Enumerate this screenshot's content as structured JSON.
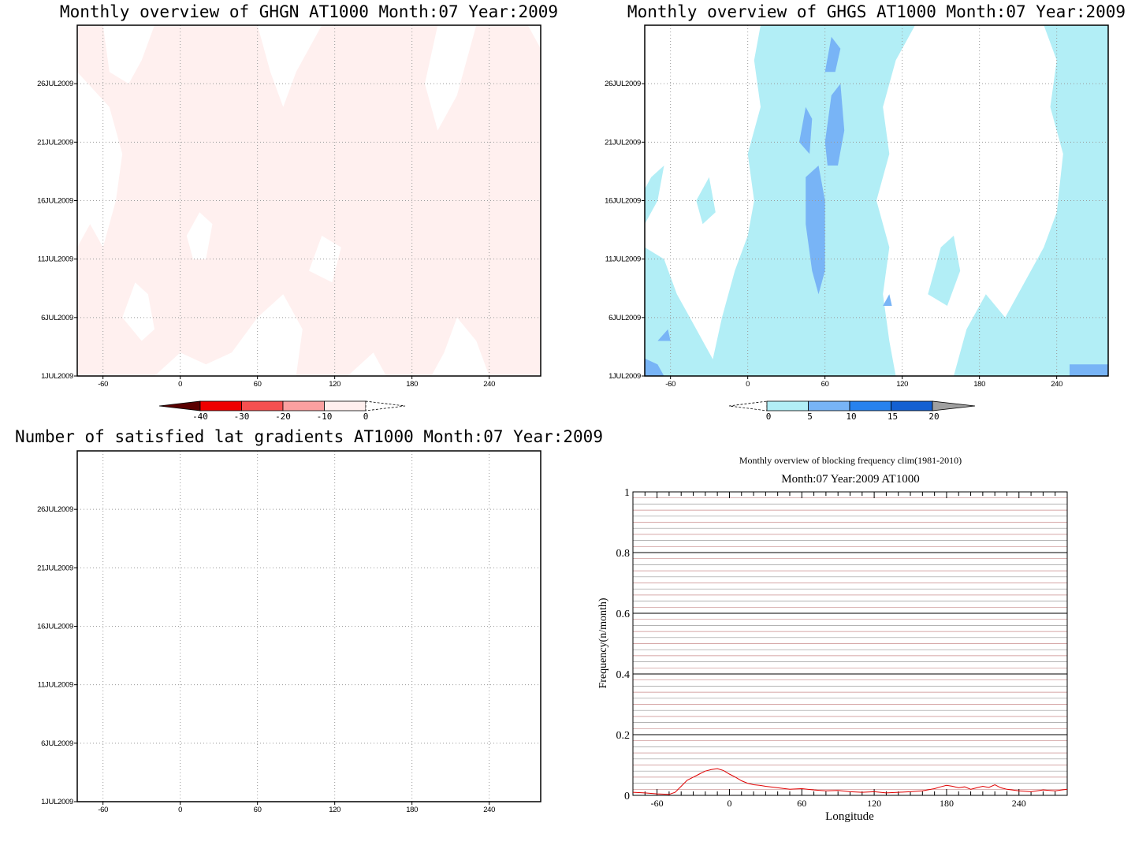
{
  "chart_data": [
    {
      "id": "ghgn",
      "type": "heatmap",
      "title": "Monthly overview of GHGN AT1000 Month:07 Year:2009",
      "x_ticks": [
        -60,
        0,
        60,
        120,
        180,
        240
      ],
      "xlim": [
        -80,
        280
      ],
      "y_ticks": [
        "1JUL2009",
        "6JUL2009",
        "11JUL2009",
        "16JUL2009",
        "21JUL2009",
        "26JUL2009"
      ],
      "y_values": [
        1,
        6,
        11,
        16,
        21,
        26
      ],
      "ylim": [
        1,
        31
      ],
      "grid": true,
      "fill_color": "#fff0ef",
      "colorbar": {
        "labels": [
          "-40",
          "-30",
          "-20",
          "-10",
          "0"
        ],
        "colors": [
          "#5a0000",
          "#ee0000",
          "#f55050",
          "#fba0a0",
          "#ffefee"
        ]
      },
      "shaded_regions_lon_day": [
        [
          [
            -80,
            1
          ],
          [
            -80,
            12
          ],
          [
            -70,
            14
          ],
          [
            -60,
            12
          ],
          [
            -50,
            16
          ],
          [
            -45,
            20
          ],
          [
            -55,
            24
          ],
          [
            -80,
            27
          ],
          [
            -80,
            31
          ],
          [
            -60,
            31
          ],
          [
            -55,
            27
          ],
          [
            -40,
            26
          ],
          [
            -30,
            28
          ],
          [
            -20,
            31
          ],
          [
            60,
            31
          ],
          [
            70,
            27
          ],
          [
            80,
            24
          ],
          [
            90,
            27
          ],
          [
            110,
            31
          ],
          [
            200,
            31
          ],
          [
            190,
            26
          ],
          [
            200,
            22
          ],
          [
            215,
            25
          ],
          [
            230,
            31
          ],
          [
            270,
            31
          ],
          [
            280,
            29
          ],
          [
            280,
            1
          ],
          [
            240,
            1
          ],
          [
            230,
            4
          ],
          [
            215,
            6
          ],
          [
            205,
            3
          ],
          [
            195,
            1
          ],
          [
            160,
            1
          ],
          [
            150,
            3
          ],
          [
            130,
            1
          ],
          [
            90,
            1
          ],
          [
            95,
            5
          ],
          [
            80,
            8
          ],
          [
            60,
            6
          ],
          [
            40,
            3
          ],
          [
            20,
            2
          ],
          [
            0,
            3
          ],
          [
            -20,
            1
          ]
        ],
        [
          [
            -45,
            6
          ],
          [
            -35,
            9
          ],
          [
            -25,
            8
          ],
          [
            -20,
            5
          ],
          [
            -30,
            4
          ]
        ],
        [
          [
            5,
            13
          ],
          [
            15,
            15
          ],
          [
            25,
            14
          ],
          [
            20,
            11
          ],
          [
            10,
            11
          ]
        ],
        [
          [
            100,
            10
          ],
          [
            110,
            13
          ],
          [
            125,
            12
          ],
          [
            118,
            9
          ]
        ]
      ]
    },
    {
      "id": "ghgs",
      "type": "heatmap",
      "title": "Monthly overview of GHGS AT1000 Month:07 Year:2009",
      "x_ticks": [
        -60,
        0,
        60,
        120,
        180,
        240
      ],
      "xlim": [
        -80,
        280
      ],
      "y_ticks": [
        "1JUL2009",
        "6JUL2009",
        "11JUL2009",
        "16JUL2009",
        "21JUL2009",
        "26JUL2009"
      ],
      "y_values": [
        1,
        6,
        11,
        16,
        21,
        26
      ],
      "ylim": [
        1,
        31
      ],
      "grid": true,
      "colorbar": {
        "labels": [
          "0",
          "5",
          "10",
          "15",
          "20"
        ],
        "colors": [
          "#b2eef6",
          "#78b4f6",
          "#2882ee",
          "#1460d2",
          "#a0a0a0"
        ]
      },
      "light_regions_lon_day": [
        [
          [
            -80,
            1
          ],
          [
            -80,
            12
          ],
          [
            -65,
            11
          ],
          [
            -55,
            8
          ],
          [
            -45,
            6
          ],
          [
            -30,
            3
          ],
          [
            -20,
            1
          ]
        ],
        [
          [
            -30,
            1
          ],
          [
            -20,
            6
          ],
          [
            -10,
            10
          ],
          [
            0,
            13
          ],
          [
            5,
            16
          ],
          [
            0,
            20
          ],
          [
            10,
            24
          ],
          [
            5,
            28
          ],
          [
            10,
            31
          ],
          [
            130,
            31
          ],
          [
            115,
            28
          ],
          [
            105,
            24
          ],
          [
            110,
            20
          ],
          [
            100,
            16
          ],
          [
            110,
            12
          ],
          [
            105,
            8
          ],
          [
            110,
            4
          ],
          [
            115,
            1
          ]
        ],
        [
          [
            -80,
            14
          ],
          [
            -70,
            16
          ],
          [
            -65,
            19
          ],
          [
            -75,
            18
          ],
          [
            -80,
            17
          ]
        ],
        [
          [
            160,
            1
          ],
          [
            170,
            5
          ],
          [
            185,
            8
          ],
          [
            200,
            6
          ],
          [
            215,
            9
          ],
          [
            230,
            12
          ],
          [
            240,
            15
          ],
          [
            245,
            20
          ],
          [
            235,
            24
          ],
          [
            240,
            28
          ],
          [
            230,
            31
          ],
          [
            280,
            31
          ],
          [
            280,
            1
          ]
        ],
        [
          [
            140,
            8
          ],
          [
            150,
            12
          ],
          [
            160,
            13
          ],
          [
            165,
            10
          ],
          [
            155,
            7
          ]
        ],
        [
          [
            -40,
            16
          ],
          [
            -30,
            18
          ],
          [
            -25,
            15
          ],
          [
            -35,
            14
          ]
        ]
      ],
      "mid_regions_lon_day": [
        [
          [
            45,
            14
          ],
          [
            50,
            10
          ],
          [
            55,
            8
          ],
          [
            60,
            10
          ],
          [
            60,
            16
          ],
          [
            55,
            19
          ],
          [
            45,
            18
          ]
        ],
        [
          [
            40,
            21
          ],
          [
            45,
            24
          ],
          [
            50,
            23
          ],
          [
            48,
            20
          ]
        ],
        [
          [
            60,
            21
          ],
          [
            65,
            25
          ],
          [
            72,
            26
          ],
          [
            75,
            22
          ],
          [
            70,
            19
          ],
          [
            62,
            19
          ]
        ],
        [
          [
            -80,
            1
          ],
          [
            -80,
            2.5
          ],
          [
            -70,
            2
          ],
          [
            -65,
            1
          ]
        ],
        [
          [
            250,
            1
          ],
          [
            250,
            2
          ],
          [
            280,
            2
          ],
          [
            280,
            1
          ]
        ],
        [
          [
            60,
            27
          ],
          [
            65,
            30
          ],
          [
            72,
            29
          ],
          [
            68,
            27
          ]
        ],
        [
          [
            -70,
            4
          ],
          [
            -62,
            5
          ],
          [
            -60,
            4
          ]
        ],
        [
          [
            105,
            7
          ],
          [
            110,
            8
          ],
          [
            112,
            7
          ]
        ]
      ]
    },
    {
      "id": "latgrad",
      "type": "heatmap",
      "title": "Number of satisfied lat gradients AT1000 Month:07 Year:2009",
      "x_ticks": [
        -60,
        0,
        60,
        120,
        180,
        240
      ],
      "xlim": [
        -80,
        280
      ],
      "y_ticks": [
        "1JUL2009",
        "6JUL2009",
        "11JUL2009",
        "16JUL2009",
        "21JUL2009",
        "26JUL2009"
      ],
      "y_values": [
        1,
        6,
        11,
        16,
        21,
        26
      ],
      "ylim": [
        1,
        31
      ],
      "grid": true
    },
    {
      "id": "blockfreq",
      "type": "line",
      "title": "Monthly overview of blocking frequency clim(1981-2010)",
      "subtitle": "Month:07 Year:2009  AT1000",
      "xlabel": "Longitude",
      "ylabel": "Frequency(n/month)",
      "xlim": [
        -80,
        280
      ],
      "ylim": [
        0,
        1
      ],
      "x_ticks": [
        -60,
        0,
        60,
        120,
        180,
        240
      ],
      "y_ticks": [
        0,
        0.2,
        0.4,
        0.6,
        0.8,
        1
      ],
      "y_tick_labels": [
        "0",
        "0.2",
        "0.4",
        "0.6",
        "0.8",
        "1"
      ],
      "grid": true,
      "series": [
        {
          "color": "#e00000",
          "x": [
            -80,
            -70,
            -60,
            -50,
            -45,
            -40,
            -35,
            -30,
            -25,
            -20,
            -15,
            -10,
            -5,
            0,
            5,
            10,
            15,
            20,
            25,
            30,
            40,
            50,
            60,
            70,
            80,
            90,
            100,
            110,
            120,
            130,
            140,
            150,
            160,
            170,
            175,
            180,
            185,
            190,
            195,
            200,
            205,
            210,
            215,
            220,
            225,
            230,
            240,
            250,
            260,
            270,
            280
          ],
          "y": [
            0.01,
            0.008,
            0.005,
            0.003,
            0.01,
            0.03,
            0.05,
            0.06,
            0.07,
            0.08,
            0.085,
            0.088,
            0.082,
            0.07,
            0.06,
            0.048,
            0.04,
            0.035,
            0.033,
            0.03,
            0.025,
            0.02,
            0.022,
            0.018,
            0.015,
            0.016,
            0.012,
            0.01,
            0.012,
            0.008,
            0.01,
            0.012,
            0.015,
            0.022,
            0.028,
            0.033,
            0.03,
            0.025,
            0.028,
            0.02,
            0.025,
            0.03,
            0.026,
            0.035,
            0.025,
            0.02,
            0.015,
            0.012,
            0.018,
            0.015,
            0.02
          ]
        }
      ]
    }
  ]
}
